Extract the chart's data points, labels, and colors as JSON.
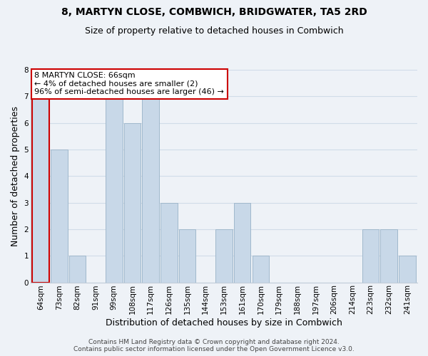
{
  "title": "8, MARTYN CLOSE, COMBWICH, BRIDGWATER, TA5 2RD",
  "subtitle": "Size of property relative to detached houses in Combwich",
  "xlabel": "Distribution of detached houses by size in Combwich",
  "ylabel": "Number of detached properties",
  "bar_labels": [
    "64sqm",
    "73sqm",
    "82sqm",
    "91sqm",
    "99sqm",
    "108sqm",
    "117sqm",
    "126sqm",
    "135sqm",
    "144sqm",
    "153sqm",
    "161sqm",
    "170sqm",
    "179sqm",
    "188sqm",
    "197sqm",
    "206sqm",
    "214sqm",
    "223sqm",
    "232sqm",
    "241sqm"
  ],
  "bar_values": [
    7,
    5,
    1,
    0,
    7,
    6,
    7,
    3,
    2,
    0,
    2,
    3,
    1,
    0,
    0,
    0,
    0,
    0,
    2,
    2,
    1
  ],
  "bar_color": "#c8d8e8",
  "bar_edge_color": "#a0b8cc",
  "highlight_bar_index": 0,
  "highlight_edge_color": "#cc0000",
  "annotation_text": "8 MARTYN CLOSE: 66sqm\n← 4% of detached houses are smaller (2)\n96% of semi-detached houses are larger (46) →",
  "annotation_box_color": "#ffffff",
  "annotation_box_edge_color": "#cc0000",
  "ylim": [
    0,
    8
  ],
  "yticks": [
    0,
    1,
    2,
    3,
    4,
    5,
    6,
    7,
    8
  ],
  "grid_color": "#d0dce8",
  "background_color": "#eef2f7",
  "footer_line1": "Contains HM Land Registry data © Crown copyright and database right 2024.",
  "footer_line2": "Contains public sector information licensed under the Open Government Licence v3.0.",
  "title_fontsize": 10,
  "subtitle_fontsize": 9,
  "axis_label_fontsize": 9,
  "tick_fontsize": 7.5,
  "annotation_fontsize": 8,
  "footer_fontsize": 6.5
}
